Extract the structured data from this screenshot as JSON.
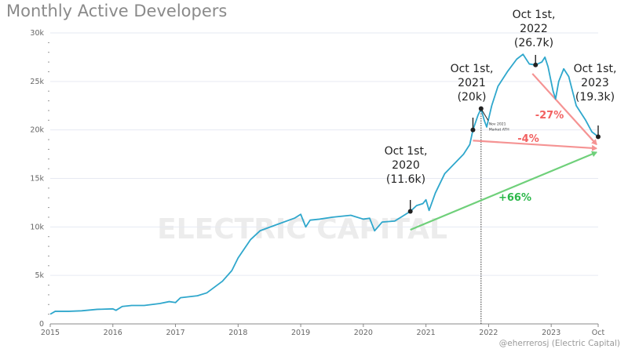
{
  "chart_data": {
    "type": "line",
    "title": "Monthly Active Developers",
    "credit": "@eherrerosj (Electric Capital)",
    "watermark": "ELECTRIC CAPITAL",
    "xlabel": "",
    "ylabel": "",
    "xlim": [
      2015,
      2023.75
    ],
    "ylim": [
      0,
      30000
    ],
    "grid": true,
    "x_ticks": [
      {
        "v": 2015,
        "label": "2015"
      },
      {
        "v": 2016,
        "label": "2016"
      },
      {
        "v": 2017,
        "label": "2017"
      },
      {
        "v": 2018,
        "label": "2018"
      },
      {
        "v": 2019,
        "label": "2019"
      },
      {
        "v": 2020,
        "label": "2020"
      },
      {
        "v": 2021,
        "label": "2021"
      },
      {
        "v": 2022,
        "label": "2022"
      },
      {
        "v": 2023,
        "label": "2023"
      },
      {
        "v": 2023.75,
        "label": "Oct"
      }
    ],
    "y_ticks": [
      {
        "v": 0,
        "label": "0"
      },
      {
        "v": 5000,
        "label": "5k"
      },
      {
        "v": 10000,
        "label": "10k"
      },
      {
        "v": 15000,
        "label": "15k"
      },
      {
        "v": 20000,
        "label": "20k"
      },
      {
        "v": 25000,
        "label": "25k"
      },
      {
        "v": 30000,
        "label": "30k"
      }
    ],
    "line_color": "#2fa7cc",
    "series": [
      {
        "x": [
          2015.0,
          2015.08,
          2015.3,
          2015.5,
          2015.75,
          2016.0,
          2016.05,
          2016.15,
          2016.3,
          2016.5,
          2016.75,
          2016.9,
          2017.0,
          2017.08,
          2017.35,
          2017.5,
          2017.75,
          2017.9,
          2018.0,
          2018.2,
          2018.35,
          2018.6,
          2018.9,
          2019.0,
          2019.08,
          2019.15,
          2019.3,
          2019.5,
          2019.8,
          2020.0,
          2020.1,
          2020.18,
          2020.3,
          2020.5,
          2020.6,
          2020.75,
          2020.85,
          2020.95,
          2021.0,
          2021.05,
          2021.15,
          2021.3,
          2021.45,
          2021.6,
          2021.7,
          2021.75,
          2021.83,
          2021.88,
          2021.93,
          2021.97,
          2022.05,
          2022.15,
          2022.3,
          2022.45,
          2022.55,
          2022.65,
          2022.75,
          2022.85,
          2022.9,
          2022.95,
          2023.03,
          2023.07,
          2023.12,
          2023.2,
          2023.28,
          2023.4,
          2023.55,
          2023.65,
          2023.75
        ],
        "y": [
          1000,
          1300,
          1300,
          1350,
          1500,
          1550,
          1400,
          1800,
          1900,
          1900,
          2100,
          2300,
          2200,
          2700,
          2900,
          3200,
          4400,
          5500,
          6800,
          8700,
          9600,
          10200,
          10900,
          11300,
          10000,
          10700,
          10800,
          11000,
          11200,
          10800,
          10900,
          9600,
          10500,
          10600,
          11000,
          11600,
          12200,
          12400,
          12800,
          11700,
          13500,
          15500,
          16500,
          17500,
          18500,
          20000,
          21500,
          22200,
          21000,
          20300,
          22500,
          24500,
          26000,
          27300,
          27800,
          26800,
          26700,
          27000,
          27500,
          26500,
          24000,
          23200,
          25000,
          26300,
          25500,
          22500,
          21000,
          19800,
          19300
        ]
      }
    ],
    "markers": [
      {
        "x": 2020.75,
        "y": 11600,
        "label": [
          "Oct 1st,",
          "2020",
          "(11.6k)"
        ]
      },
      {
        "x": 2021.75,
        "y": 20000,
        "label": [
          "Oct 1st,",
          "2021",
          "(20k)"
        ]
      },
      {
        "x": 2022.75,
        "y": 26700,
        "label": [
          "Oct 1st,",
          "2022",
          "(26.7k)"
        ]
      },
      {
        "x": 2023.75,
        "y": 19300,
        "label": [
          "Oct 1st,",
          "2023",
          "(19.3k)"
        ]
      }
    ],
    "ath": {
      "x": 2021.88,
      "y": 22200,
      "label": [
        "Nov 2021",
        "Market ATH"
      ]
    },
    "arrows": [
      {
        "from": [
          2020.75,
          9700
        ],
        "to": [
          2023.75,
          17700
        ],
        "label": "+66%",
        "color": "#6fd07a",
        "text_color": "#2cb84a"
      },
      {
        "from": [
          2021.75,
          18900
        ],
        "to": [
          2023.75,
          18100
        ],
        "label": "-4%",
        "color": "#f59393",
        "text_color": "#f26060"
      },
      {
        "from": [
          2022.7,
          25800
        ],
        "to": [
          2023.75,
          18500
        ],
        "label": "-27%",
        "color": "#f59393",
        "text_color": "#f26060"
      }
    ]
  }
}
